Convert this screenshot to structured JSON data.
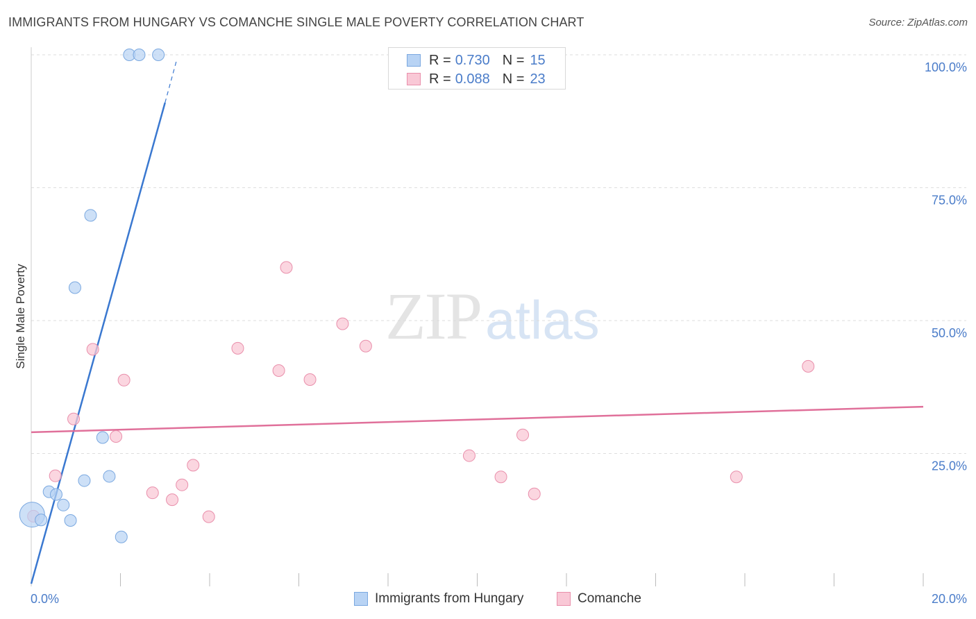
{
  "header": {
    "title": "IMMIGRANTS FROM HUNGARY VS COMANCHE SINGLE MALE POVERTY CORRELATION CHART",
    "source": "Source: ZipAtlas.com"
  },
  "watermark": {
    "zip": "ZIP",
    "atlas": "atlas"
  },
  "legend": {
    "rows": [
      {
        "r_label": "R =",
        "r_value": "0.730",
        "n_label": "N =",
        "n_value": "15"
      },
      {
        "r_label": "R =",
        "r_value": "0.088",
        "n_label": "N =",
        "n_value": "23"
      }
    ]
  },
  "bottom_legend": {
    "series1": "Immigrants from Hungary",
    "series2": "Comanche"
  },
  "colors": {
    "hungary_fill": "#b8d3f4",
    "hungary_stroke": "#7aa8e0",
    "hungary_line": "#3a78d0",
    "comanche_fill": "#f9c8d6",
    "comanche_stroke": "#e98fab",
    "comanche_line": "#e0709a",
    "tick_text": "#4a7cc9",
    "grid": "#dddddd"
  },
  "chart_data": {
    "type": "scatter",
    "title": "IMMIGRANTS FROM HUNGARY VS COMANCHE SINGLE MALE POVERTY CORRELATION CHART",
    "xlabel": "",
    "ylabel": "Single Male Poverty",
    "xlim": [
      0,
      20
    ],
    "ylim": [
      0,
      100
    ],
    "x_tick_labels": [
      "0.0%",
      "20.0%"
    ],
    "y_ticks": [
      25,
      50,
      75,
      100
    ],
    "y_tick_labels": [
      "25.0%",
      "50.0%",
      "75.0%",
      "100.0%"
    ],
    "series": [
      {
        "name": "Immigrants from Hungary",
        "R": 0.73,
        "N": 15,
        "points": [
          {
            "x": 0.02,
            "y": 13.5,
            "big": true
          },
          {
            "x": 0.22,
            "y": 12.5
          },
          {
            "x": 0.4,
            "y": 17.8
          },
          {
            "x": 0.56,
            "y": 17.3
          },
          {
            "x": 0.72,
            "y": 15.3
          },
          {
            "x": 0.88,
            "y": 12.4
          },
          {
            "x": 0.98,
            "y": 56.2
          },
          {
            "x": 1.19,
            "y": 19.9
          },
          {
            "x": 1.33,
            "y": 69.8
          },
          {
            "x": 1.6,
            "y": 28.0
          },
          {
            "x": 1.75,
            "y": 20.7
          },
          {
            "x": 2.02,
            "y": 9.3
          },
          {
            "x": 2.2,
            "y": 100.0
          },
          {
            "x": 2.42,
            "y": 100.0
          },
          {
            "x": 2.85,
            "y": 100.0
          }
        ],
        "trend": {
          "x1": 0.0,
          "y1": 0.5,
          "x2": 3.0,
          "y2": 91.0,
          "dash_x2": 3.27,
          "dash_y2": 99.3
        }
      },
      {
        "name": "Comanche",
        "R": 0.088,
        "N": 23,
        "points": [
          {
            "x": 0.05,
            "y": 13.2
          },
          {
            "x": 0.54,
            "y": 20.8
          },
          {
            "x": 0.95,
            "y": 31.5
          },
          {
            "x": 1.38,
            "y": 44.6
          },
          {
            "x": 1.9,
            "y": 28.2
          },
          {
            "x": 2.08,
            "y": 38.8
          },
          {
            "x": 2.72,
            "y": 17.6
          },
          {
            "x": 3.16,
            "y": 16.3
          },
          {
            "x": 3.38,
            "y": 19.1
          },
          {
            "x": 3.63,
            "y": 22.8
          },
          {
            "x": 3.98,
            "y": 13.1
          },
          {
            "x": 4.63,
            "y": 44.8
          },
          {
            "x": 5.55,
            "y": 40.6
          },
          {
            "x": 5.72,
            "y": 60.0
          },
          {
            "x": 6.25,
            "y": 38.9
          },
          {
            "x": 6.98,
            "y": 49.4
          },
          {
            "x": 7.5,
            "y": 45.2
          },
          {
            "x": 9.82,
            "y": 24.6
          },
          {
            "x": 10.53,
            "y": 20.6
          },
          {
            "x": 11.02,
            "y": 28.5
          },
          {
            "x": 11.28,
            "y": 17.4
          },
          {
            "x": 15.81,
            "y": 20.6
          },
          {
            "x": 17.42,
            "y": 41.4
          }
        ],
        "trend": {
          "x1": 0.0,
          "y1": 29.0,
          "x2": 20.0,
          "y2": 33.8
        }
      }
    ]
  }
}
